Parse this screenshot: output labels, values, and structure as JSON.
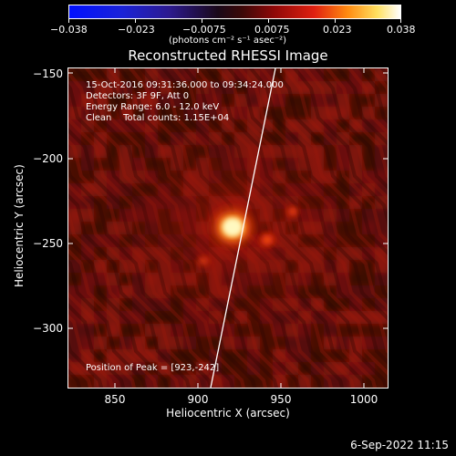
{
  "colorbar": {
    "ticks": [
      "−0.038",
      "−0.023",
      "−0.0075",
      "0.0075",
      "0.023",
      "0.038"
    ],
    "units_label": "(photons cm⁻² s⁻¹ asec⁻²)"
  },
  "image": {
    "title": "Reconstructed RHESSI Image",
    "annotations": {
      "time_range": "15-Oct-2016 09:31:36.000 to 09:34:24.000",
      "detectors": "Detectors: 3F 9F, Att 0",
      "energy_range": "Energy Range: 6.0 - 12.0 keV",
      "method_counts": "Clean    Total counts: 1.15E+04",
      "peak_position": "Position of Peak = [923,-242]"
    },
    "x_axis": {
      "label": "Heliocentric X (arcsec)",
      "ticks": [
        "850",
        "900",
        "950",
        "1000"
      ]
    },
    "y_axis": {
      "label": "Heliocentric Y (arcsec)",
      "ticks": [
        "−150",
        "−200",
        "−250",
        "−300"
      ]
    }
  },
  "footer": {
    "timestamp": "6-Sep-2022 11:15"
  },
  "colors": {
    "background": "#000000",
    "foreground": "#ffffff",
    "limb_line": "#ffffff"
  }
}
